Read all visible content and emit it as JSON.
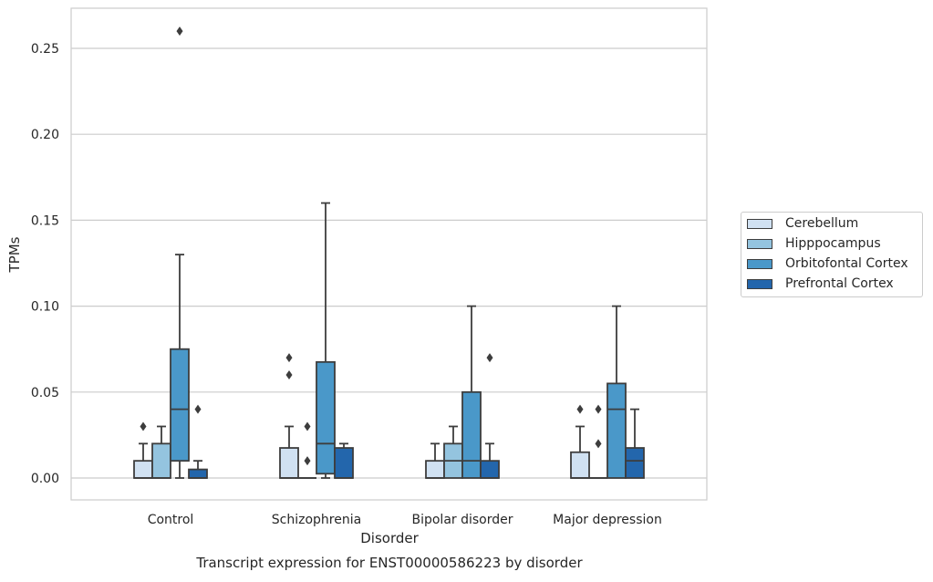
{
  "chart_data": {
    "type": "box",
    "xlabel": "Disorder",
    "ylabel": "TPMs",
    "caption": "Transcript expression for ENST00000586223 by disorder",
    "ylim": [
      -0.012,
      0.275
    ],
    "yticks": [
      0.0,
      0.05,
      0.1,
      0.15,
      0.2,
      0.25
    ],
    "ytick_labels": [
      "0.00",
      "0.05",
      "0.10",
      "0.15",
      "0.20",
      "0.25"
    ],
    "grid": "horizontal",
    "legend_position": "right",
    "categories": [
      "Control",
      "Schizophrenia",
      "Bipolar disorder",
      "Major depression"
    ],
    "series": [
      {
        "name": "Cerebellum",
        "color": "#d0e1f2",
        "boxes": [
          {
            "whisker_low": 0,
            "q1": 0,
            "median": 0,
            "q3": 0.01,
            "whisker_high": 0.02,
            "outliers": [
              0.03
            ]
          },
          {
            "whisker_low": 0,
            "q1": 0,
            "median": 0,
            "q3": 0.0175,
            "whisker_high": 0.03,
            "outliers": [
              0.06,
              0.07
            ]
          },
          {
            "whisker_low": 0,
            "q1": 0,
            "median": 0,
            "q3": 0.01,
            "whisker_high": 0.02,
            "outliers": []
          },
          {
            "whisker_low": 0,
            "q1": 0,
            "median": 0,
            "q3": 0.015,
            "whisker_high": 0.03,
            "outliers": [
              0.04
            ]
          }
        ]
      },
      {
        "name": "Hipppocampus",
        "color": "#94c4df",
        "boxes": [
          {
            "whisker_low": 0,
            "q1": 0,
            "median": 0,
            "q3": 0.02,
            "whisker_high": 0.03,
            "outliers": []
          },
          {
            "whisker_low": 0,
            "q1": 0,
            "median": 0,
            "q3": 0,
            "whisker_high": 0,
            "outliers": [
              0.01,
              0.03
            ]
          },
          {
            "whisker_low": 0,
            "q1": 0,
            "median": 0.01,
            "q3": 0.02,
            "whisker_high": 0.03,
            "outliers": []
          },
          {
            "whisker_low": 0,
            "q1": 0,
            "median": 0,
            "q3": 0,
            "whisker_high": 0,
            "outliers": [
              0.02,
              0.04
            ]
          }
        ]
      },
      {
        "name": "Orbitofontal Cortex",
        "color": "#4a98c9",
        "boxes": [
          {
            "whisker_low": 0,
            "q1": 0.01,
            "median": 0.04,
            "q3": 0.075,
            "whisker_high": 0.13,
            "outliers": [
              0.26
            ]
          },
          {
            "whisker_low": 0,
            "q1": 0.0025,
            "median": 0.02,
            "q3": 0.0675,
            "whisker_high": 0.16,
            "outliers": []
          },
          {
            "whisker_low": 0,
            "q1": 0,
            "median": 0.01,
            "q3": 0.05,
            "whisker_high": 0.1,
            "outliers": []
          },
          {
            "whisker_low": 0,
            "q1": 0,
            "median": 0.04,
            "q3": 0.055,
            "whisker_high": 0.1,
            "outliers": []
          }
        ]
      },
      {
        "name": "Prefrontal Cortex",
        "color": "#2366ac",
        "boxes": [
          {
            "whisker_low": 0,
            "q1": 0,
            "median": 0,
            "q3": 0.005,
            "whisker_high": 0.01,
            "outliers": [
              0.04
            ]
          },
          {
            "whisker_low": 0,
            "q1": 0,
            "median": 0,
            "q3": 0.0175,
            "whisker_high": 0.02,
            "outliers": []
          },
          {
            "whisker_low": 0,
            "q1": 0,
            "median": 0,
            "q3": 0.01,
            "whisker_high": 0.02,
            "outliers": [
              0.07
            ]
          },
          {
            "whisker_low": 0,
            "q1": 0,
            "median": 0.01,
            "q3": 0.0175,
            "whisker_high": 0.04,
            "outliers": []
          }
        ]
      }
    ]
  }
}
